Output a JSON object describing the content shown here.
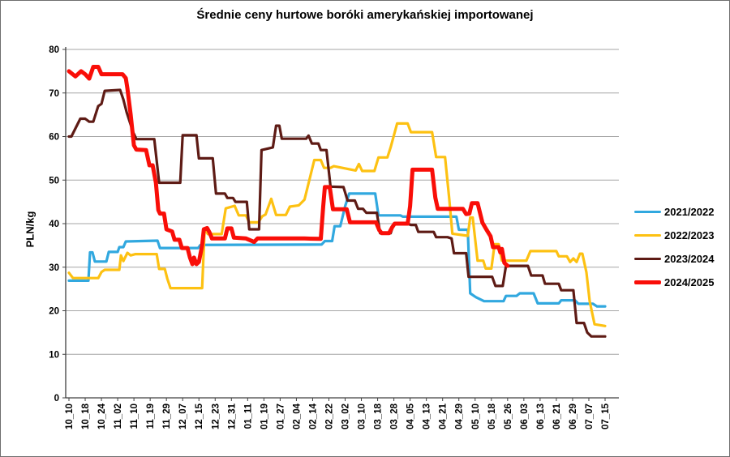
{
  "title": "Średnie ceny hurtowe boróki amerykańskiej importowanej",
  "chart_data": {
    "type": "line",
    "title": "Średnie ceny hurtowe boróki amerykańskiej importowanej",
    "xlabel": "",
    "ylabel": "PLN/kg",
    "ylim": [
      0,
      80
    ],
    "ytick_step": 10,
    "grid": true,
    "legend_position": "right",
    "axis_color": "#404040",
    "grid_color": "#a6a6a6",
    "categories": [
      "10_10",
      "10_18",
      "10_24",
      "11_02",
      "11_10",
      "11_19",
      "11_29",
      "12_07",
      "12_15",
      "12_23",
      "12_31",
      "01_11",
      "01_19",
      "01_27",
      "02_04",
      "02_14",
      "02_22",
      "03_02",
      "03_10",
      "03_18",
      "03_28",
      "04_05",
      "04_13",
      "04_21",
      "04_29",
      "05_10",
      "05_18",
      "05_26",
      "06_03",
      "06_13",
      "06_21",
      "06_29",
      "07_07",
      "07_15"
    ],
    "series": [
      {
        "name": "2021/2022",
        "color": "#31a8df",
        "width": 3.2,
        "points": [
          [
            0,
            26.9
          ],
          [
            1.2,
            26.9
          ],
          [
            1.3,
            33.4
          ],
          [
            1.45,
            33.4
          ],
          [
            1.6,
            31.3
          ],
          [
            2.3,
            31.3
          ],
          [
            2.45,
            33.5
          ],
          [
            3.0,
            33.5
          ],
          [
            3.1,
            34.6
          ],
          [
            3.35,
            34.6
          ],
          [
            3.5,
            35.9
          ],
          [
            5.45,
            36.1
          ],
          [
            5.6,
            34.4
          ],
          [
            7.95,
            34.4
          ],
          [
            8.1,
            35.1
          ],
          [
            15.55,
            35.2
          ],
          [
            15.75,
            36
          ],
          [
            16.2,
            36
          ],
          [
            16.35,
            39.4
          ],
          [
            16.7,
            39.4
          ],
          [
            17.0,
            44
          ],
          [
            17.25,
            46.9
          ],
          [
            18.85,
            46.9
          ],
          [
            19.05,
            41.9
          ],
          [
            20.4,
            41.9
          ],
          [
            20.55,
            41.6
          ],
          [
            23.85,
            41.6
          ],
          [
            24.0,
            38.6
          ],
          [
            24.55,
            38.6
          ],
          [
            24.7,
            24
          ],
          [
            25.05,
            23.1
          ],
          [
            25.55,
            22.2
          ],
          [
            26.75,
            22.2
          ],
          [
            26.9,
            23.4
          ],
          [
            27.55,
            23.4
          ],
          [
            27.75,
            24
          ],
          [
            28.6,
            24
          ],
          [
            28.85,
            21.7
          ],
          [
            30.15,
            21.7
          ],
          [
            30.3,
            22.4
          ],
          [
            31.15,
            22.4
          ],
          [
            31.35,
            21.6
          ],
          [
            32.25,
            21.6
          ],
          [
            32.5,
            21
          ],
          [
            33,
            21
          ]
        ]
      },
      {
        "name": "2022/2023",
        "color": "#fdc112",
        "width": 3.2,
        "points": [
          [
            0,
            28.7
          ],
          [
            0.25,
            27.5
          ],
          [
            1.8,
            27.5
          ],
          [
            2.0,
            28.9
          ],
          [
            2.2,
            29.4
          ],
          [
            3.1,
            29.4
          ],
          [
            3.2,
            32.7
          ],
          [
            3.35,
            31.4
          ],
          [
            3.6,
            33.3
          ],
          [
            3.8,
            32.7
          ],
          [
            4.1,
            33
          ],
          [
            5.4,
            33
          ],
          [
            5.55,
            29.6
          ],
          [
            5.9,
            29.6
          ],
          [
            6.05,
            27.4
          ],
          [
            6.25,
            25.2
          ],
          [
            8.2,
            25.2
          ],
          [
            8.35,
            38.9
          ],
          [
            8.55,
            37.6
          ],
          [
            9.4,
            37.6
          ],
          [
            9.65,
            43.5
          ],
          [
            10.2,
            44.1
          ],
          [
            10.45,
            41.9
          ],
          [
            10.9,
            41.9
          ],
          [
            11.1,
            40.3
          ],
          [
            11.65,
            40.3
          ],
          [
            11.9,
            41.7
          ],
          [
            12.1,
            42.1
          ],
          [
            12.45,
            45.7
          ],
          [
            12.75,
            42
          ],
          [
            13.35,
            42
          ],
          [
            13.6,
            43.9
          ],
          [
            14.15,
            44.2
          ],
          [
            14.5,
            45.5
          ],
          [
            15.1,
            54.6
          ],
          [
            15.5,
            54.6
          ],
          [
            15.7,
            52.8
          ],
          [
            16.1,
            52.8
          ],
          [
            16.3,
            53.2
          ],
          [
            17.65,
            52.2
          ],
          [
            17.85,
            53.7
          ],
          [
            18.05,
            52.1
          ],
          [
            18.8,
            52.1
          ],
          [
            19.05,
            55.2
          ],
          [
            19.6,
            55.2
          ],
          [
            19.8,
            57.5
          ],
          [
            20.2,
            63
          ],
          [
            20.85,
            63
          ],
          [
            21.05,
            61
          ],
          [
            22.35,
            61
          ],
          [
            22.6,
            55.3
          ],
          [
            23.15,
            55.3
          ],
          [
            23.4,
            46
          ],
          [
            23.6,
            37.7
          ],
          [
            24.55,
            37.2
          ],
          [
            24.7,
            41.4
          ],
          [
            24.85,
            41.4
          ],
          [
            25.15,
            31.5
          ],
          [
            25.5,
            31.5
          ],
          [
            25.65,
            29.7
          ],
          [
            26.0,
            29.7
          ],
          [
            26.2,
            35.3
          ],
          [
            26.45,
            35.3
          ],
          [
            26.65,
            31.5
          ],
          [
            28.15,
            31.5
          ],
          [
            28.4,
            33.7
          ],
          [
            30.0,
            33.7
          ],
          [
            30.15,
            32.5
          ],
          [
            30.65,
            32.5
          ],
          [
            30.85,
            31.2
          ],
          [
            31.05,
            32
          ],
          [
            31.25,
            31.2
          ],
          [
            31.45,
            33.1
          ],
          [
            31.6,
            33.1
          ],
          [
            31.85,
            28.8
          ],
          [
            32.05,
            22.2
          ],
          [
            32.35,
            16.9
          ],
          [
            33,
            16.5
          ]
        ]
      },
      {
        "name": "2023/2024",
        "color": "#5e1b15",
        "width": 3.2,
        "points": [
          [
            0,
            60
          ],
          [
            0.15,
            60
          ],
          [
            0.7,
            64.1
          ],
          [
            1.0,
            64.1
          ],
          [
            1.25,
            63.4
          ],
          [
            1.5,
            63.4
          ],
          [
            1.8,
            67
          ],
          [
            2.0,
            67.5
          ],
          [
            2.2,
            70.5
          ],
          [
            3.15,
            70.7
          ],
          [
            3.35,
            68.5
          ],
          [
            3.55,
            65.6
          ],
          [
            3.95,
            61
          ],
          [
            4.15,
            59.4
          ],
          [
            5.25,
            59.4
          ],
          [
            5.55,
            49.4
          ],
          [
            6.85,
            49.4
          ],
          [
            7.0,
            60.3
          ],
          [
            7.85,
            60.3
          ],
          [
            8.0,
            55
          ],
          [
            8.85,
            55
          ],
          [
            9.05,
            46.9
          ],
          [
            9.6,
            46.9
          ],
          [
            9.75,
            45.9
          ],
          [
            10.1,
            45.9
          ],
          [
            10.25,
            45
          ],
          [
            10.95,
            45
          ],
          [
            11.1,
            38.7
          ],
          [
            11.7,
            38.7
          ],
          [
            11.85,
            56.9
          ],
          [
            12.55,
            57.5
          ],
          [
            12.75,
            62.5
          ],
          [
            12.95,
            62.5
          ],
          [
            13.1,
            59.5
          ],
          [
            14.6,
            59.5
          ],
          [
            14.75,
            60.2
          ],
          [
            14.95,
            58.4
          ],
          [
            15.35,
            58.4
          ],
          [
            15.5,
            56.9
          ],
          [
            15.85,
            56.9
          ],
          [
            16.1,
            48.5
          ],
          [
            16.9,
            48.4
          ],
          [
            17.15,
            45.3
          ],
          [
            17.6,
            45.3
          ],
          [
            17.8,
            43.4
          ],
          [
            18.1,
            43.4
          ],
          [
            18.3,
            42.5
          ],
          [
            18.95,
            42.5
          ],
          [
            19.15,
            37.8
          ],
          [
            19.8,
            37.8
          ],
          [
            20.0,
            40
          ],
          [
            20.85,
            40
          ],
          [
            21.05,
            39.7
          ],
          [
            21.35,
            39.7
          ],
          [
            21.5,
            38.1
          ],
          [
            22.45,
            38.1
          ],
          [
            22.6,
            36.9
          ],
          [
            23.3,
            36.9
          ],
          [
            23.55,
            36.6
          ],
          [
            23.7,
            33.2
          ],
          [
            24.45,
            33.2
          ],
          [
            24.6,
            27.8
          ],
          [
            26.05,
            27.8
          ],
          [
            26.25,
            25.7
          ],
          [
            26.7,
            25.7
          ],
          [
            26.9,
            30.3
          ],
          [
            28.25,
            30.3
          ],
          [
            28.45,
            28.1
          ],
          [
            29.15,
            28.1
          ],
          [
            29.3,
            26.2
          ],
          [
            30.15,
            26.2
          ],
          [
            30.3,
            24.7
          ],
          [
            31.05,
            24.7
          ],
          [
            31.25,
            17.2
          ],
          [
            31.7,
            17.2
          ],
          [
            31.9,
            15
          ],
          [
            32.15,
            14.1
          ],
          [
            33,
            14.1
          ]
        ]
      },
      {
        "name": "2024/2025",
        "color": "#f90e08",
        "width": 5,
        "points": [
          [
            0,
            75
          ],
          [
            0.4,
            73.8
          ],
          [
            0.75,
            75
          ],
          [
            1.0,
            74.3
          ],
          [
            1.25,
            73.3
          ],
          [
            1.5,
            76
          ],
          [
            1.8,
            76
          ],
          [
            2.0,
            74.3
          ],
          [
            3.3,
            74.3
          ],
          [
            3.5,
            73.4
          ],
          [
            3.6,
            71
          ],
          [
            3.8,
            65
          ],
          [
            4.0,
            58
          ],
          [
            4.15,
            57
          ],
          [
            4.75,
            56.9
          ],
          [
            4.95,
            53.4
          ],
          [
            5.15,
            53.4
          ],
          [
            5.35,
            49.4
          ],
          [
            5.5,
            43.1
          ],
          [
            5.6,
            42.3
          ],
          [
            5.85,
            42.3
          ],
          [
            6.0,
            38.7
          ],
          [
            6.35,
            38.2
          ],
          [
            6.5,
            36.3
          ],
          [
            6.8,
            36.3
          ],
          [
            6.95,
            34.4
          ],
          [
            7.3,
            34.4
          ],
          [
            7.45,
            32.2
          ],
          [
            7.6,
            30.7
          ],
          [
            7.7,
            32.2
          ],
          [
            7.85,
            30.7
          ],
          [
            8.0,
            31.2
          ],
          [
            8.2,
            35
          ],
          [
            8.3,
            38.7
          ],
          [
            8.5,
            39
          ],
          [
            8.65,
            38
          ],
          [
            8.8,
            36.6
          ],
          [
            9.6,
            36.6
          ],
          [
            9.75,
            38.9
          ],
          [
            10.0,
            38.9
          ],
          [
            10.15,
            36.8
          ],
          [
            10.9,
            36.6
          ],
          [
            11.4,
            35.8
          ],
          [
            11.6,
            36.6
          ],
          [
            14.5,
            36.6
          ],
          [
            15.5,
            36.5
          ],
          [
            15.65,
            44
          ],
          [
            15.75,
            48.4
          ],
          [
            16.05,
            48.4
          ],
          [
            16.25,
            43.3
          ],
          [
            17.1,
            43.3
          ],
          [
            17.3,
            40.3
          ],
          [
            18.9,
            40.3
          ],
          [
            19.1,
            38.5
          ],
          [
            19.25,
            37.8
          ],
          [
            19.7,
            37.8
          ],
          [
            19.9,
            39.2
          ],
          [
            20.05,
            40
          ],
          [
            20.85,
            40
          ],
          [
            21.0,
            44
          ],
          [
            21.15,
            52.4
          ],
          [
            22.35,
            52.4
          ],
          [
            22.55,
            46
          ],
          [
            22.7,
            43.4
          ],
          [
            24.25,
            43.4
          ],
          [
            24.45,
            42.2
          ],
          [
            24.65,
            42.3
          ],
          [
            24.8,
            44.7
          ],
          [
            25.15,
            44.7
          ],
          [
            25.45,
            40.2
          ],
          [
            25.7,
            38.6
          ],
          [
            25.95,
            37.1
          ],
          [
            26.1,
            34.6
          ],
          [
            26.45,
            34.6
          ],
          [
            26.55,
            33.4
          ],
          [
            26.65,
            34.2
          ],
          [
            26.8,
            31
          ],
          [
            27.0,
            30.3
          ]
        ]
      }
    ]
  }
}
